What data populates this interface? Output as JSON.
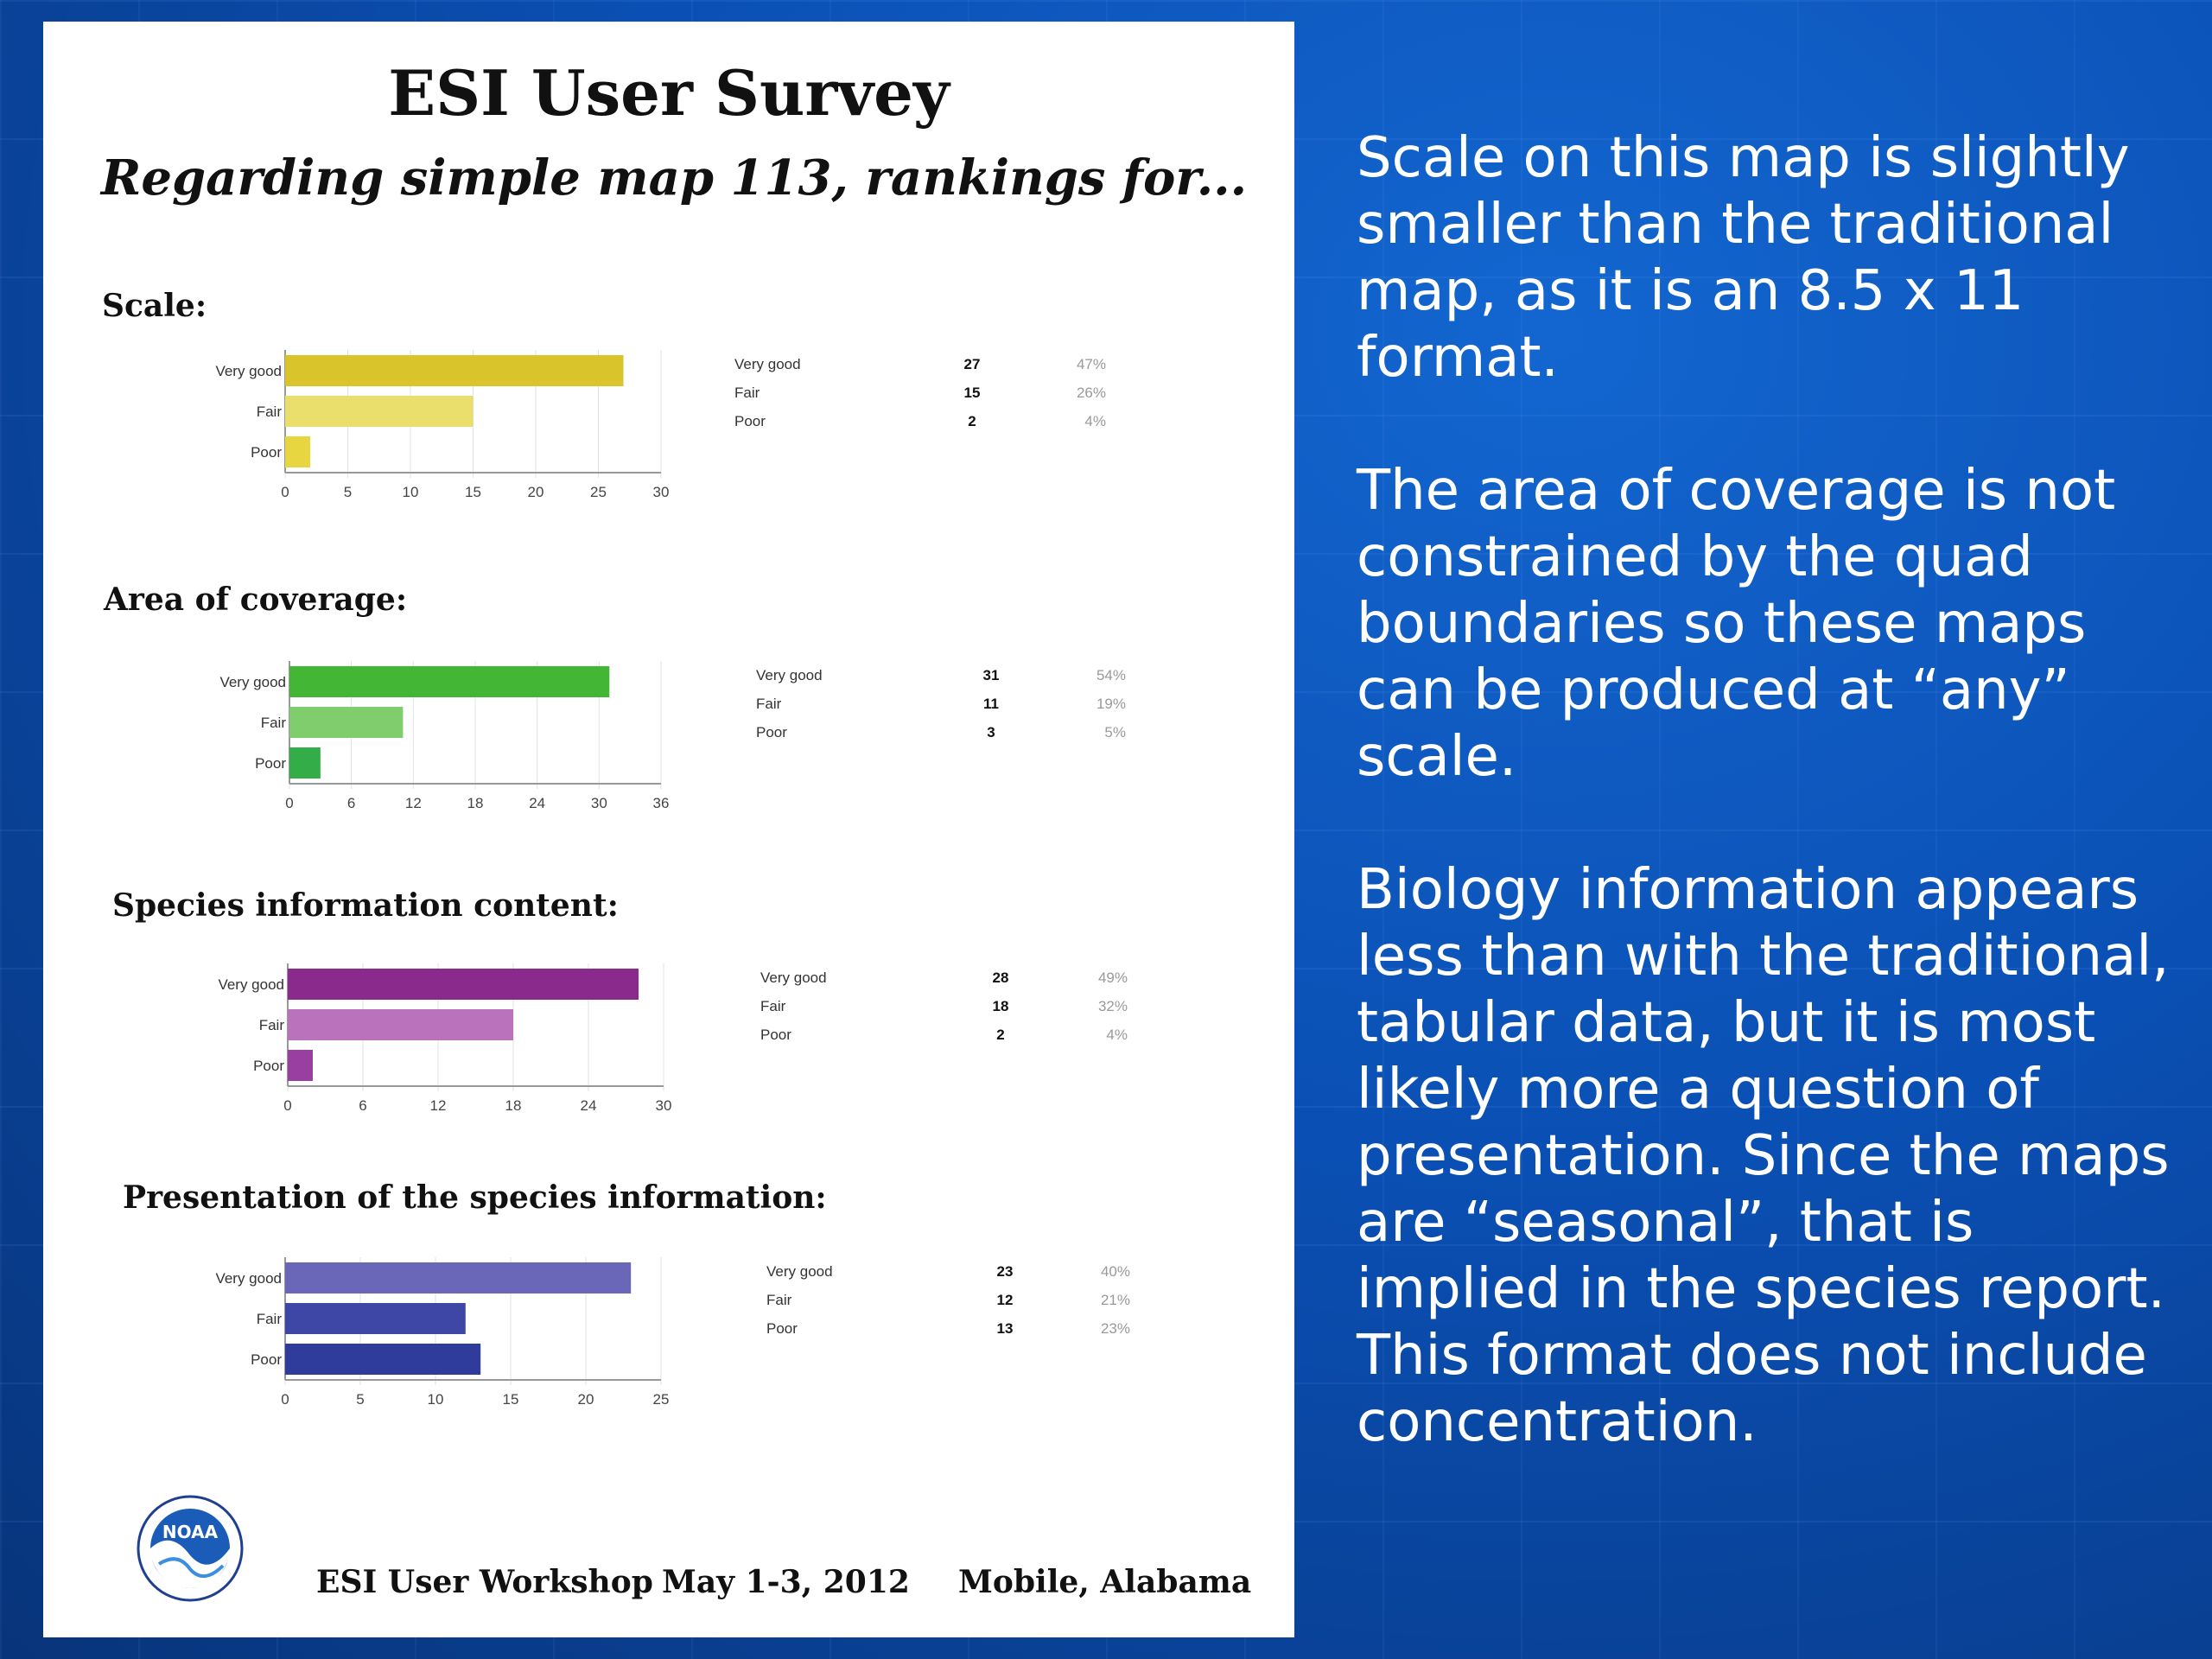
{
  "slide": {
    "title": "ESI User Survey",
    "subtitle": "Regarding simple map 113, rankings for...",
    "footer": {
      "event": "ESI User Workshop",
      "date": "May 1-3, 2012",
      "location": "Mobile, Alabama",
      "logo_text": "NOAA"
    },
    "paragraphs": [
      "Scale on this map is slightly smaller than the traditional map, as it is an 8.5 x 11 format.",
      "The area of coverage is not constrained by the quad boundaries so these maps can be produced at “any” scale.",
      "Biology information appears less than with the traditional, tabular data, but it is most likely more a question of presentation. Since the maps are “seasonal”, that is implied in the species report. This format does not include concentration."
    ]
  },
  "chart_data": [
    {
      "type": "bar",
      "orientation": "horizontal",
      "title": "Scale:",
      "categories": [
        "Very good",
        "Fair",
        "Poor"
      ],
      "values": [
        27,
        15,
        2
      ],
      "percents": [
        "47%",
        "26%",
        "4%"
      ],
      "xlim": [
        0,
        30
      ],
      "xticks": [
        0,
        5,
        10,
        15,
        20,
        25,
        30
      ],
      "colors": [
        "#d9c42c",
        "#eadf6c",
        "#e8d640"
      ]
    },
    {
      "type": "bar",
      "orientation": "horizontal",
      "title": "Area of coverage:",
      "categories": [
        "Very good",
        "Fair",
        "Poor"
      ],
      "values": [
        31,
        11,
        3
      ],
      "percents": [
        "54%",
        "19%",
        "5%"
      ],
      "xlim": [
        0,
        36
      ],
      "xticks": [
        0,
        6,
        12,
        18,
        24,
        30,
        36
      ],
      "colors": [
        "#43b636",
        "#7fcd6d",
        "#33ad47"
      ]
    },
    {
      "type": "bar",
      "orientation": "horizontal",
      "title": "Species information content:",
      "categories": [
        "Very good",
        "Fair",
        "Poor"
      ],
      "values": [
        28,
        18,
        2
      ],
      "percents": [
        "49%",
        "32%",
        "4%"
      ],
      "xlim": [
        0,
        30
      ],
      "xticks": [
        0,
        6,
        12,
        18,
        24,
        30
      ],
      "colors": [
        "#8a2a8c",
        "#bb72bd",
        "#9a3fa2"
      ]
    },
    {
      "type": "bar",
      "orientation": "horizontal",
      "title": "Presentation of the species information:",
      "categories": [
        "Very good",
        "Fair",
        "Poor"
      ],
      "values": [
        23,
        12,
        13
      ],
      "percents": [
        "40%",
        "21%",
        "23%"
      ],
      "xlim": [
        0,
        25
      ],
      "xticks": [
        0,
        5,
        10,
        15,
        20,
        25
      ],
      "colors": [
        "#6a66b8",
        "#3e46a6",
        "#2f3c9c"
      ]
    }
  ]
}
